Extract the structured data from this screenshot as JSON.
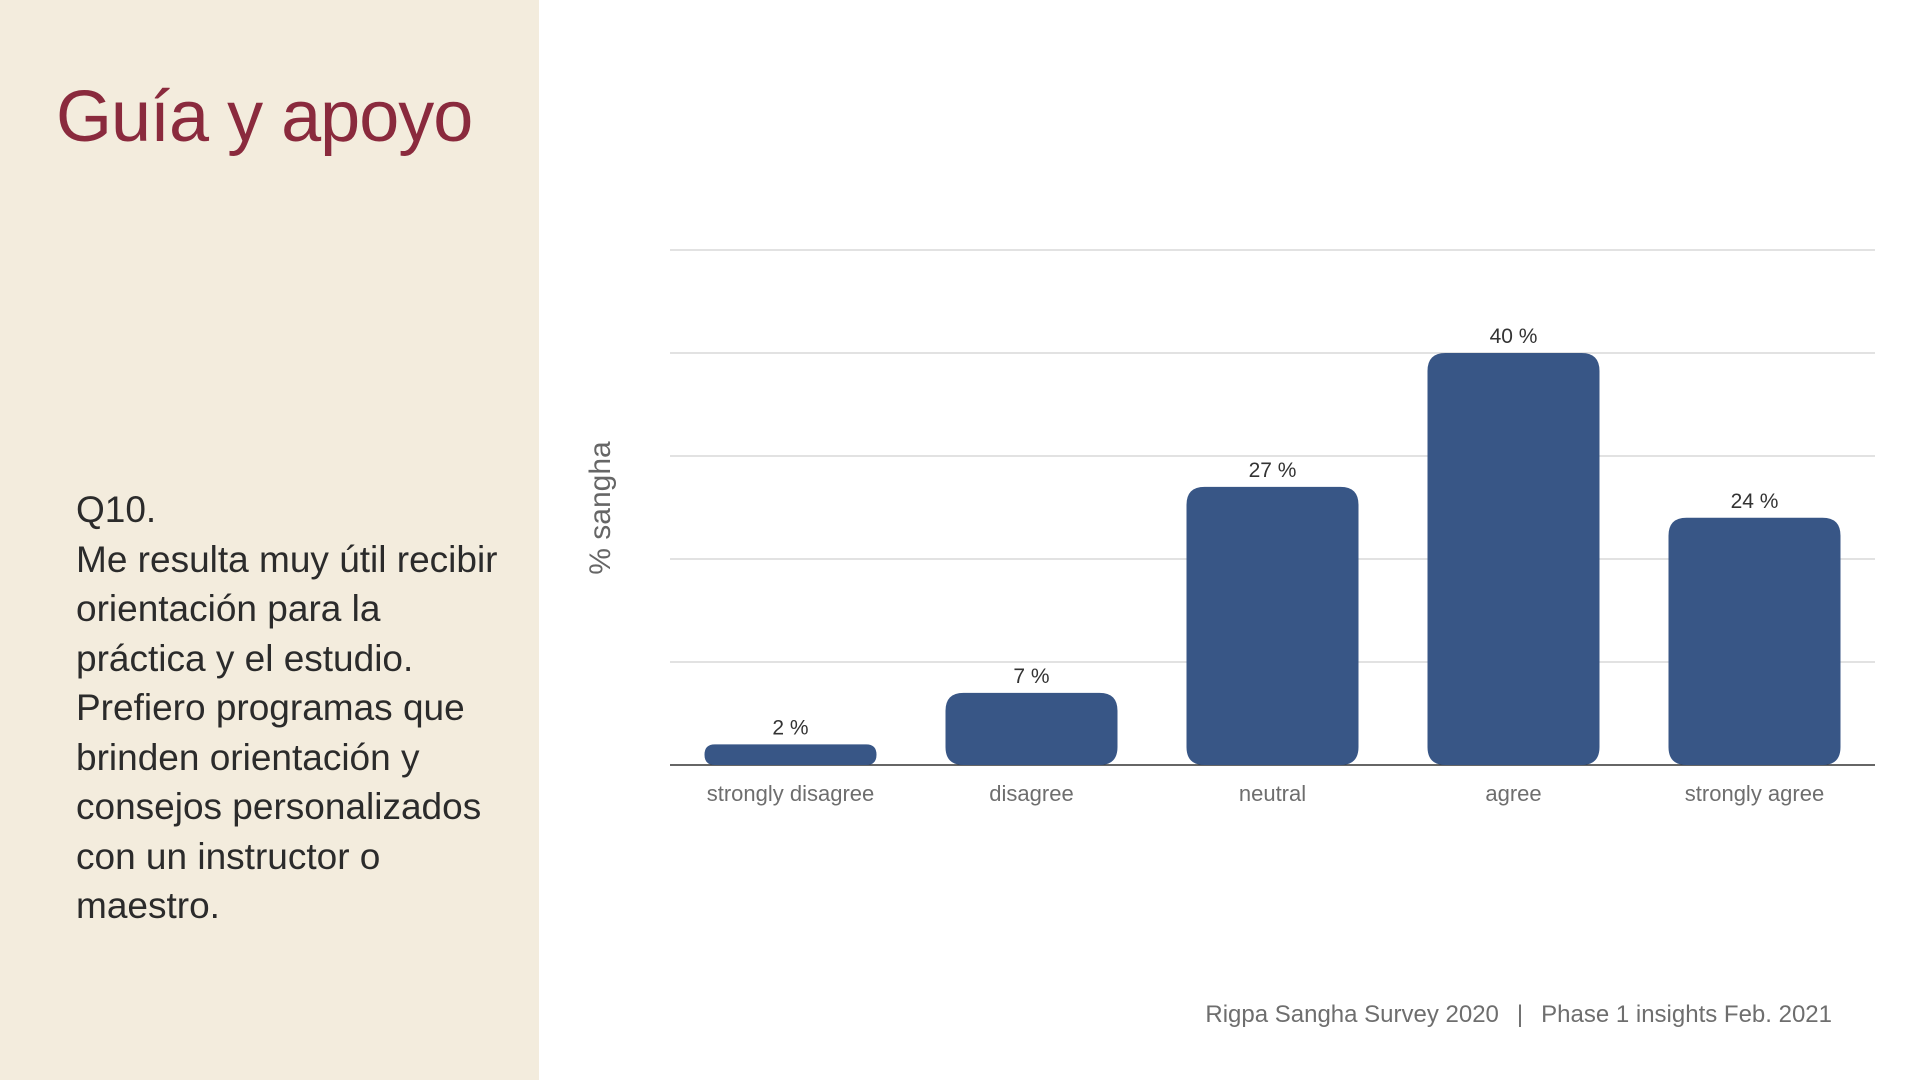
{
  "slide": {
    "title": "Guía y apoyo",
    "question_number": "Q10.",
    "question_text": "Me resulta muy útil recibir orientación para la práctica y el estudio. Prefiero programas que brinden orientación y consejos personalizados con un instructor o maestro.",
    "footer_left": "Rigpa Sangha Survey 2020",
    "footer_separator": "|",
    "footer_right": "Phase 1 insights Feb. 2021"
  },
  "colors": {
    "sidebar_background": "#f3ecdd",
    "title": "#8a2a3d",
    "bar": "#385686",
    "gridline": "#d0d0d0",
    "axis": "#333333"
  },
  "chart_data": {
    "type": "bar",
    "categories": [
      "strongly disagree",
      "disagree",
      "neutral",
      "agree",
      "strongly agree"
    ],
    "values": [
      2,
      7,
      27,
      40,
      24
    ],
    "value_labels": [
      "2 %",
      "7 %",
      "27 %",
      "40 %",
      "24 %"
    ],
    "title": "",
    "xlabel": "",
    "ylabel": "% sangha",
    "ylim": [
      0,
      50
    ],
    "gridlines": [
      0,
      10,
      20,
      30,
      40,
      50
    ],
    "grid": true,
    "legend": "none"
  }
}
